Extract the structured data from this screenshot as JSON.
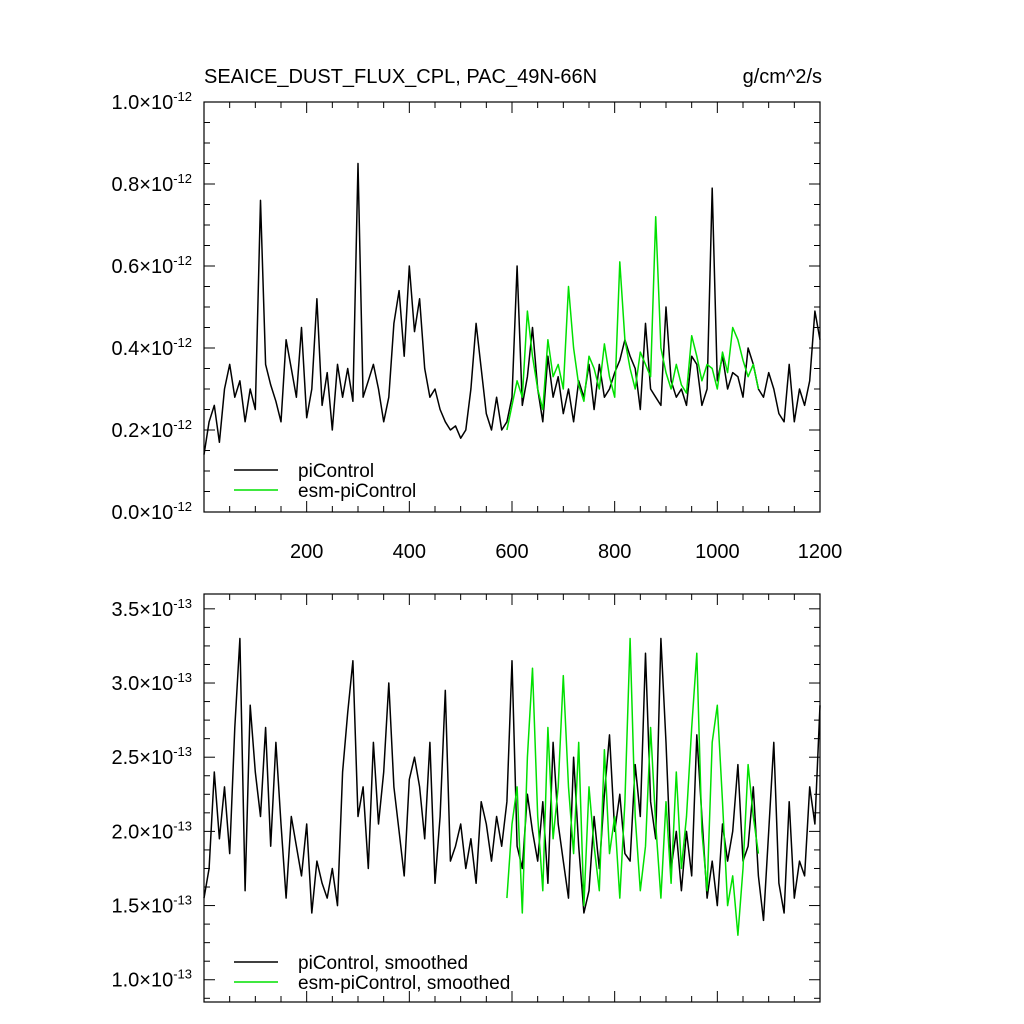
{
  "header": {
    "title": "SEAICE_DUST_FLUX_CPL, PAC_49N-66N",
    "units": "g/cm^2/s"
  },
  "colors": {
    "picontrol": "#000000",
    "esm": "#00e000",
    "axis": "#000000"
  },
  "chart_data": [
    {
      "type": "line",
      "xlim": [
        0,
        1200
      ],
      "ylim": [
        0.0,
        1.0
      ],
      "y_exponent": "-12",
      "yticks": [
        {
          "v": 0.0,
          "label": "0.0"
        },
        {
          "v": 0.2,
          "label": "0.2"
        },
        {
          "v": 0.4,
          "label": "0.4"
        },
        {
          "v": 0.6,
          "label": "0.6"
        },
        {
          "v": 0.8,
          "label": "0.8"
        },
        {
          "v": 1.0,
          "label": "1.0"
        }
      ],
      "xticks": [
        {
          "v": 200,
          "label": "200"
        },
        {
          "v": 400,
          "label": "400"
        },
        {
          "v": 600,
          "label": "600"
        },
        {
          "v": 800,
          "label": "800"
        },
        {
          "v": 1000,
          "label": "1000"
        },
        {
          "v": 1200,
          "label": "1200"
        }
      ],
      "legend": {
        "position": "bottom-left",
        "entries": [
          "piControl",
          "esm-piControl"
        ]
      },
      "series": [
        {
          "name": "piControl",
          "x_start": 0,
          "x_step": 10,
          "values": [
            0.14,
            0.22,
            0.26,
            0.17,
            0.3,
            0.36,
            0.28,
            0.32,
            0.22,
            0.3,
            0.25,
            0.76,
            0.36,
            0.31,
            0.27,
            0.22,
            0.42,
            0.35,
            0.28,
            0.45,
            0.23,
            0.3,
            0.52,
            0.26,
            0.34,
            0.2,
            0.36,
            0.28,
            0.35,
            0.27,
            0.85,
            0.28,
            0.32,
            0.36,
            0.3,
            0.22,
            0.28,
            0.46,
            0.54,
            0.38,
            0.6,
            0.44,
            0.52,
            0.35,
            0.28,
            0.3,
            0.25,
            0.22,
            0.2,
            0.21,
            0.18,
            0.2,
            0.3,
            0.46,
            0.35,
            0.24,
            0.2,
            0.28,
            0.2,
            0.22,
            0.28,
            0.6,
            0.26,
            0.33,
            0.45,
            0.3,
            0.22,
            0.38,
            0.28,
            0.33,
            0.24,
            0.3,
            0.22,
            0.32,
            0.28,
            0.36,
            0.25,
            0.36,
            0.28,
            0.3,
            0.34,
            0.37,
            0.42,
            0.38,
            0.35,
            0.25,
            0.46,
            0.3,
            0.28,
            0.26,
            0.5,
            0.32,
            0.28,
            0.3,
            0.26,
            0.38,
            0.36,
            0.26,
            0.3,
            0.79,
            0.32,
            0.38,
            0.3,
            0.34,
            0.33,
            0.28,
            0.4,
            0.36,
            0.3,
            0.28,
            0.34,
            0.3,
            0.24,
            0.22,
            0.36,
            0.22,
            0.3,
            0.26,
            0.32,
            0.49,
            0.42
          ]
        },
        {
          "name": "esm-piControl",
          "x_start": 590,
          "x_step": 10,
          "values": [
            0.2,
            0.26,
            0.32,
            0.28,
            0.49,
            0.38,
            0.3,
            0.25,
            0.42,
            0.33,
            0.36,
            0.3,
            0.55,
            0.4,
            0.31,
            0.27,
            0.38,
            0.35,
            0.3,
            0.41,
            0.33,
            0.28,
            0.61,
            0.42,
            0.35,
            0.3,
            0.39,
            0.36,
            0.33,
            0.72,
            0.4,
            0.34,
            0.3,
            0.36,
            0.31,
            0.29,
            0.43,
            0.38,
            0.32,
            0.36,
            0.35,
            0.3,
            0.39,
            0.34,
            0.45,
            0.42,
            0.37,
            0.33,
            0.36,
            0.3
          ]
        }
      ]
    },
    {
      "type": "line",
      "xlim": [
        0,
        1200
      ],
      "ylim": [
        0.85,
        3.6
      ],
      "y_exponent": "-13",
      "yticks": [
        {
          "v": 1.0,
          "label": "1.0"
        },
        {
          "v": 1.5,
          "label": "1.5"
        },
        {
          "v": 2.0,
          "label": "2.0"
        },
        {
          "v": 2.5,
          "label": "2.5"
        },
        {
          "v": 3.0,
          "label": "3.0"
        },
        {
          "v": 3.5,
          "label": "3.5"
        }
      ],
      "legend": {
        "position": "bottom-left",
        "entries": [
          "piControl, smoothed",
          "esm-piControl, smoothed"
        ]
      },
      "series": [
        {
          "name": "piControl, smoothed",
          "x_start": 0,
          "x_step": 10,
          "values": [
            1.55,
            1.75,
            2.4,
            1.95,
            2.3,
            1.85,
            2.7,
            3.3,
            1.6,
            2.85,
            2.4,
            2.1,
            2.7,
            1.9,
            2.6,
            2.05,
            1.55,
            2.1,
            1.9,
            1.7,
            2.05,
            1.45,
            1.8,
            1.65,
            1.55,
            1.75,
            1.5,
            2.4,
            2.8,
            3.15,
            2.1,
            2.3,
            1.75,
            2.6,
            2.05,
            2.4,
            3.0,
            2.3,
            2.0,
            1.7,
            2.35,
            2.5,
            2.3,
            1.95,
            2.6,
            1.65,
            2.1,
            2.95,
            1.8,
            1.9,
            2.05,
            1.75,
            1.95,
            1.65,
            2.2,
            2.05,
            1.8,
            2.1,
            1.9,
            2.2,
            3.15,
            1.9,
            1.75,
            2.25,
            2.0,
            1.8,
            2.2,
            1.65,
            2.6,
            2.05,
            1.8,
            1.55,
            2.5,
            1.9,
            1.45,
            1.6,
            2.1,
            1.75,
            2.25,
            2.65,
            2.0,
            2.25,
            1.85,
            1.8,
            2.45,
            2.1,
            3.2,
            2.2,
            1.95,
            3.3,
            2.6,
            1.75,
            2.0,
            1.6,
            2.0,
            1.7,
            2.65,
            2.1,
            1.55,
            1.8,
            1.5,
            2.05,
            1.8,
            2.0,
            2.45,
            1.8,
            1.9,
            2.3,
            1.7,
            1.4,
            2.0,
            2.6,
            1.65,
            1.45,
            2.2,
            1.55,
            1.8,
            1.7,
            2.3,
            2.05,
            2.85
          ]
        },
        {
          "name": "esm-piControl, smoothed",
          "x_start": 590,
          "x_step": 10,
          "values": [
            1.55,
            2.05,
            2.3,
            1.45,
            2.5,
            3.1,
            2.1,
            1.6,
            2.7,
            1.95,
            2.3,
            3.05,
            2.3,
            1.85,
            2.6,
            1.5,
            2.3,
            1.9,
            1.6,
            2.55,
            1.85,
            2.1,
            1.55,
            2.2,
            3.3,
            2.1,
            1.6,
            1.9,
            2.7,
            2.05,
            1.55,
            2.2,
            1.65,
            2.4,
            1.75,
            2.1,
            2.7,
            3.2,
            2.0,
            1.6,
            2.6,
            2.85,
            2.2,
            1.5,
            1.7,
            1.3,
            1.75,
            2.45,
            2.1,
            1.85
          ]
        }
      ]
    }
  ]
}
